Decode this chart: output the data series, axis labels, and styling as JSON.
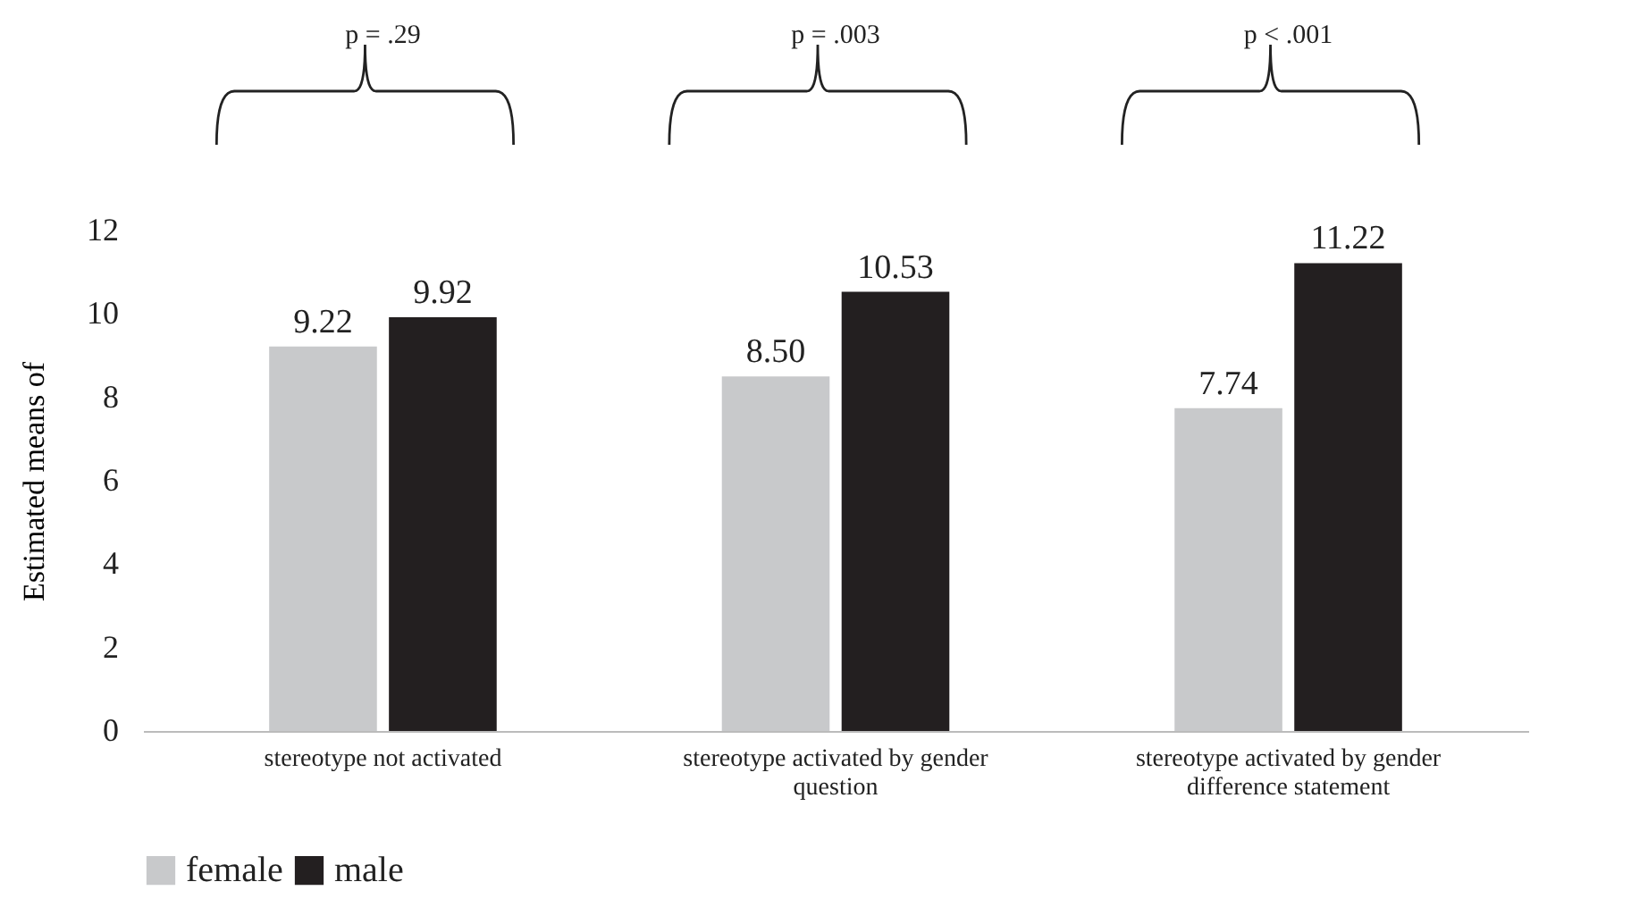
{
  "chart_data": {
    "type": "bar",
    "ylabel": "Estimated means of",
    "categories": [
      "stereotype not activated",
      "stereotype activated by gender question",
      "stereotype activated by gender difference statement"
    ],
    "series": [
      {
        "name": "female",
        "color": "#c8c9cb",
        "values": [
          9.22,
          8.5,
          7.74
        ]
      },
      {
        "name": "male",
        "color": "#231f20",
        "values": [
          9.92,
          10.53,
          11.22
        ]
      }
    ],
    "value_labels": [
      [
        "9.22",
        "8.50",
        "7.74"
      ],
      [
        "9.92",
        "10.53",
        "11.22"
      ]
    ],
    "ylim": [
      0,
      12
    ],
    "yticks": [
      0,
      2,
      4,
      6,
      8,
      10,
      12
    ],
    "grid": false,
    "legend": "bottom",
    "annotations": [
      "p = .29",
      "p = .003",
      "p < .001"
    ]
  }
}
